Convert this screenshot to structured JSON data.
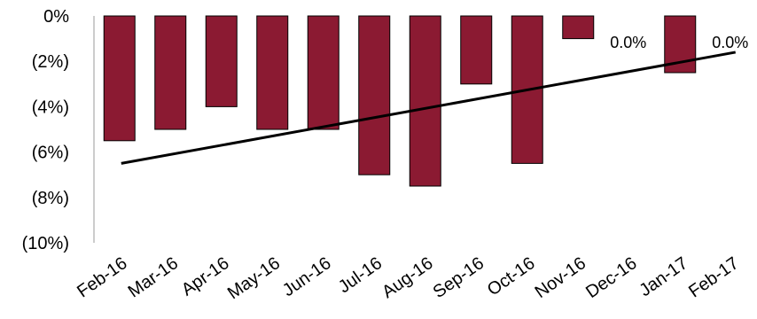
{
  "chart_data": {
    "type": "bar",
    "title": "",
    "xlabel": "",
    "ylabel": "",
    "categories": [
      "Feb-16",
      "Mar-16",
      "Apr-16",
      "May-16",
      "Jun-16",
      "Jul-16",
      "Aug-16",
      "Sep-16",
      "Oct-16",
      "Nov-16",
      "Dec-16",
      "Jan-17",
      "Feb-17"
    ],
    "values": [
      -5.5,
      -5.0,
      -4.0,
      -5.0,
      -5.0,
      -7.0,
      -7.5,
      -3.0,
      -6.5,
      -1.0,
      0.0,
      -2.5,
      0.0
    ],
    "ylim": [
      -10,
      0
    ],
    "yticks": [
      0,
      -2,
      -4,
      -6,
      -8,
      -10
    ],
    "ytick_labels": [
      "0%",
      "(2%)",
      "(4%)",
      "(6%)",
      "(8%)",
      "(10%)"
    ],
    "data_labels": [
      {
        "category": "Dec-16",
        "text": "0.0%"
      },
      {
        "category": "Feb-17",
        "text": "0.0%"
      }
    ],
    "trendline": {
      "type": "linear",
      "start": {
        "category": "Feb-16",
        "value": -6.5
      },
      "end": {
        "category": "Feb-17",
        "value": -1.6
      }
    },
    "bar_color": "#8B1A32",
    "trend_color": "#000000",
    "grid": false,
    "legend": "none"
  }
}
